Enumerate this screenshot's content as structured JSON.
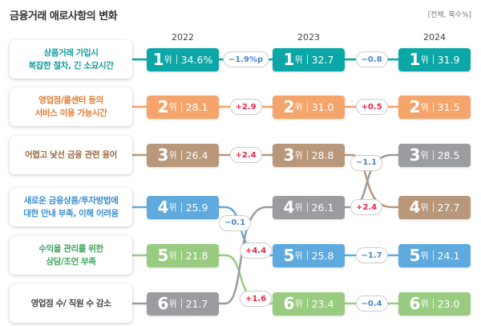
{
  "title": "금융거래 애로사항의 변화",
  "unit": "[전체, 복수%]",
  "chart_data": {
    "type": "bump",
    "years": [
      "2022",
      "2023",
      "2024"
    ],
    "rank_suffix": "위",
    "items": [
      {
        "label": "상품거래 가입시\n복잡한 절차, 긴 소요시간",
        "color": "#0ba6a6",
        "text_color": "#139d9d",
        "ranks": [
          1,
          1,
          1
        ],
        "values": [
          "34.6%",
          "32.7",
          "31.9"
        ],
        "changes": [
          "−1.9%p",
          "−0.8"
        ]
      },
      {
        "label": "영업점/콜센터 등의\n서비스 이용 가능시간",
        "color": "#f5a56b",
        "text_color": "#e27a30",
        "ranks": [
          2,
          2,
          2
        ],
        "values": [
          "28.1",
          "31.0",
          "31.5"
        ],
        "changes": [
          "+2.9",
          "+0.5"
        ]
      },
      {
        "label": "어렵고 낯선 금융 관련 용어",
        "color": "#b9977a",
        "text_color": "#9a6b3f",
        "ranks": [
          3,
          3,
          4
        ],
        "values": [
          "26.4",
          "28.8",
          "27.7"
        ],
        "changes": [
          "+2.4",
          "−1.1"
        ]
      },
      {
        "label": "새로운 금융상품/투자방법에\n대한 안내 부족, 이해 어려움",
        "color": "#5eaadf",
        "text_color": "#3b8fd0",
        "ranks": [
          4,
          5,
          5
        ],
        "values": [
          "25.9",
          "25.8",
          "24.1"
        ],
        "changes": [
          "−0.1",
          "−1.7"
        ]
      },
      {
        "label": "수익을 관리를 위한\n상담/조언 부족",
        "color": "#99cc80",
        "text_color": "#3aa65a",
        "ranks": [
          5,
          6,
          6
        ],
        "values": [
          "21.8",
          "23.4",
          "23.0"
        ],
        "changes": [
          "+1.6",
          "−0.4"
        ]
      },
      {
        "label": "영업점 수/ 직원 수 감소",
        "color": "#9b9ca0",
        "text_color": "#444444",
        "ranks": [
          6,
          4,
          3
        ],
        "values": [
          "21.7",
          "26.1",
          "28.5"
        ],
        "changes": [
          "+4.4",
          "+2.4"
        ]
      }
    ],
    "positive_color": "#e8264a",
    "negative_color": "#4a86d0"
  }
}
